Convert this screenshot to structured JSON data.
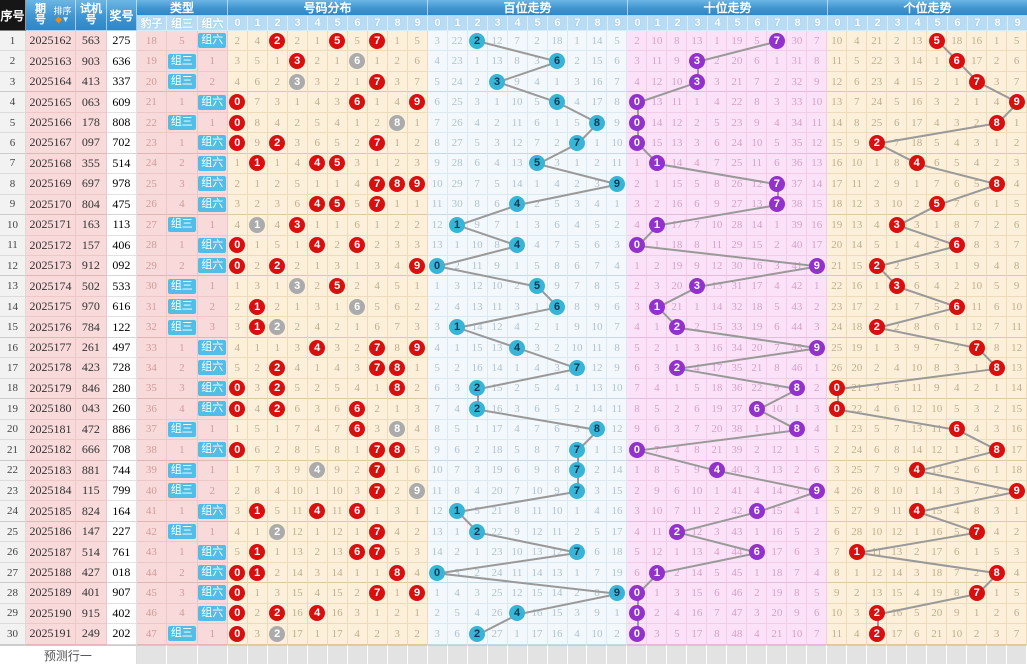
{
  "header": {
    "seq": "序号",
    "period": "期号",
    "sort": "排序",
    "sort_icons": [
      "◆",
      "▼"
    ],
    "test": "试机号",
    "prize": "奖号",
    "type": "类型",
    "sections": [
      "号码分布",
      "百位走势",
      "十位走势",
      "个位走势"
    ],
    "type_cols": [
      "豹子",
      "组三",
      "组六"
    ],
    "digits": [
      "0",
      "1",
      "2",
      "3",
      "4",
      "5",
      "6",
      "7",
      "8",
      "9"
    ]
  },
  "footer": {
    "label": "预测行一"
  },
  "colors": {
    "header_blue": "#3f95d1",
    "subheader_blue": "#b7dcf4",
    "seq_header_black": "#161616",
    "left_pink": "#f9dada",
    "cream": "#fcf0da",
    "hundreds_bg": "#f2f8fb",
    "tens_bg": "#fce2f8",
    "hit_red": "#d90f0f",
    "repeat_gray": "#ababab",
    "hundreds_cyan": "#38b4d6",
    "tens_purple": "#9231cb",
    "type_badge_cyan": "#52bee7",
    "trend_line": "#999999"
  },
  "legend": {
    "cell_codes": "numbers are miss counts; R = red hit circle (digit drawn), G = gray circle (digit drawn twice), H = hit circle in trend section at that digit column"
  },
  "row_fields": [
    "seq",
    "period",
    "test_number",
    "prize_number",
    "baozi_miss",
    "zu3",
    "zu6",
    "dist",
    "hundreds",
    "tens",
    "units"
  ],
  "rows": [
    [
      1,
      "2025162",
      "563",
      "275",
      18,
      5,
      "组六",
      [
        2,
        4,
        "R",
        2,
        1,
        "R",
        5,
        "R",
        1,
        5
      ],
      [
        3,
        22,
        "H",
        12,
        7,
        2,
        18,
        1,
        14,
        5
      ],
      [
        2,
        10,
        8,
        13,
        1,
        19,
        5,
        "H",
        30,
        7
      ],
      [
        10,
        4,
        21,
        2,
        13,
        "H",
        18,
        16,
        1,
        5
      ]
    ],
    [
      2,
      "2025163",
      "903",
      "636",
      19,
      "组三",
      1,
      [
        3,
        5,
        1,
        "R",
        2,
        1,
        "G",
        1,
        2,
        6
      ],
      [
        4,
        23,
        1,
        13,
        8,
        3,
        "H",
        2,
        15,
        6
      ],
      [
        3,
        11,
        9,
        "H",
        2,
        20,
        6,
        1,
        31,
        8
      ],
      [
        11,
        5,
        22,
        3,
        14,
        1,
        "H",
        17,
        2,
        6
      ]
    ],
    [
      3,
      "2025164",
      "413",
      "337",
      20,
      "组三",
      2,
      [
        4,
        6,
        2,
        "G",
        3,
        2,
        1,
        "R",
        3,
        7
      ],
      [
        5,
        24,
        2,
        "H",
        9,
        4,
        1,
        3,
        16,
        7
      ],
      [
        4,
        12,
        10,
        "H",
        3,
        21,
        7,
        2,
        32,
        9
      ],
      [
        12,
        6,
        23,
        4,
        15,
        2,
        1,
        "H",
        3,
        7
      ]
    ],
    [
      4,
      "2025165",
      "063",
      "609",
      21,
      1,
      "组六",
      [
        "R",
        7,
        3,
        1,
        4,
        3,
        "R",
        1,
        4,
        "R"
      ],
      [
        6,
        25,
        3,
        1,
        10,
        5,
        "H",
        4,
        17,
        8
      ],
      [
        "H",
        13,
        11,
        1,
        4,
        22,
        8,
        3,
        33,
        10
      ],
      [
        13,
        7,
        24,
        5,
        16,
        3,
        2,
        1,
        4,
        "H"
      ]
    ],
    [
      5,
      "2025166",
      "178",
      "808",
      22,
      "组三",
      1,
      [
        "R",
        8,
        4,
        2,
        5,
        4,
        1,
        2,
        "G",
        1
      ],
      [
        7,
        26,
        4,
        2,
        11,
        6,
        1,
        5,
        "H",
        9
      ],
      [
        "H",
        14,
        12,
        2,
        5,
        23,
        9,
        4,
        34,
        11
      ],
      [
        14,
        8,
        25,
        6,
        17,
        4,
        3,
        2,
        "H",
        1
      ]
    ],
    [
      6,
      "2025167",
      "097",
      "702",
      23,
      1,
      "组六",
      [
        "R",
        9,
        "R",
        3,
        6,
        5,
        2,
        "R",
        1,
        2
      ],
      [
        8,
        27,
        5,
        3,
        12,
        7,
        2,
        "H",
        1,
        10
      ],
      [
        "H",
        15,
        13,
        3,
        6,
        24,
        10,
        5,
        35,
        12
      ],
      [
        15,
        9,
        "H",
        7,
        18,
        5,
        4,
        3,
        1,
        2
      ]
    ],
    [
      7,
      "2025168",
      "355",
      "514",
      24,
      2,
      "组六",
      [
        1,
        "R",
        1,
        4,
        "R",
        "R",
        3,
        1,
        2,
        3
      ],
      [
        9,
        28,
        6,
        4,
        13,
        "H",
        3,
        1,
        2,
        11
      ],
      [
        1,
        "H",
        14,
        4,
        7,
        25,
        11,
        6,
        36,
        13
      ],
      [
        16,
        10,
        1,
        8,
        "H",
        6,
        5,
        4,
        2,
        3
      ]
    ],
    [
      8,
      "2025169",
      "697",
      "978",
      25,
      3,
      "组六",
      [
        2,
        1,
        2,
        5,
        1,
        1,
        4,
        "R",
        "R",
        "R"
      ],
      [
        10,
        29,
        7,
        5,
        14,
        1,
        4,
        2,
        3,
        "H"
      ],
      [
        2,
        1,
        15,
        5,
        8,
        26,
        12,
        "H",
        37,
        14
      ],
      [
        17,
        11,
        2,
        9,
        1,
        7,
        6,
        5,
        "H",
        4
      ]
    ],
    [
      9,
      "2025170",
      "804",
      "475",
      26,
      4,
      "组六",
      [
        3,
        2,
        3,
        6,
        "R",
        "R",
        5,
        "R",
        1,
        1
      ],
      [
        11,
        30,
        8,
        6,
        "H",
        2,
        5,
        3,
        4,
        1
      ],
      [
        3,
        2,
        16,
        6,
        9,
        27,
        13,
        "H",
        38,
        15
      ],
      [
        18,
        12,
        3,
        10,
        2,
        "H",
        7,
        6,
        1,
        5
      ]
    ],
    [
      10,
      "2025171",
      "163",
      "113",
      27,
      "组三",
      1,
      [
        4,
        "G",
        4,
        "R",
        1,
        1,
        6,
        1,
        2,
        2
      ],
      [
        12,
        "H",
        9,
        7,
        1,
        3,
        6,
        4,
        5,
        2
      ],
      [
        4,
        "H",
        17,
        7,
        10,
        28,
        14,
        1,
        39,
        16
      ],
      [
        19,
        13,
        4,
        "H",
        3,
        1,
        8,
        7,
        2,
        6
      ]
    ],
    [
      11,
      "2025172",
      "157",
      "406",
      28,
      1,
      "组六",
      [
        "R",
        1,
        5,
        1,
        "R",
        2,
        "R",
        2,
        3,
        3
      ],
      [
        13,
        1,
        10,
        8,
        "H",
        4,
        7,
        5,
        6,
        3
      ],
      [
        "H",
        1,
        18,
        8,
        11,
        29,
        15,
        2,
        40,
        17
      ],
      [
        20,
        14,
        5,
        1,
        4,
        2,
        "H",
        8,
        3,
        7
      ]
    ],
    [
      12,
      "2025173",
      "912",
      "092",
      29,
      2,
      "组六",
      [
        "R",
        2,
        "R",
        2,
        1,
        3,
        1,
        3,
        4,
        "R"
      ],
      [
        "H",
        2,
        11,
        9,
        1,
        5,
        8,
        6,
        7,
        4
      ],
      [
        1,
        2,
        19,
        9,
        12,
        30,
        16,
        3,
        41,
        "H"
      ],
      [
        21,
        15,
        "H",
        2,
        5,
        3,
        1,
        9,
        4,
        8
      ]
    ],
    [
      13,
      "2025174",
      "502",
      "533",
      30,
      "组三",
      1,
      [
        1,
        3,
        1,
        "G",
        2,
        "R",
        2,
        4,
        5,
        1
      ],
      [
        1,
        3,
        12,
        10,
        2,
        "H",
        9,
        7,
        8,
        5
      ],
      [
        2,
        3,
        20,
        "H",
        13,
        31,
        17,
        4,
        42,
        1
      ],
      [
        22,
        16,
        1,
        "H",
        6,
        4,
        2,
        10,
        5,
        9
      ]
    ],
    [
      14,
      "2025175",
      "970",
      "616",
      31,
      "组三",
      2,
      [
        2,
        "R",
        2,
        1,
        3,
        1,
        "G",
        5,
        6,
        2
      ],
      [
        2,
        4,
        13,
        11,
        3,
        1,
        "H",
        8,
        9,
        6
      ],
      [
        3,
        "H",
        21,
        1,
        14,
        32,
        18,
        5,
        43,
        2
      ],
      [
        23,
        17,
        2,
        1,
        7,
        5,
        "H",
        11,
        6,
        10
      ]
    ],
    [
      15,
      "2025176",
      "784",
      "122",
      32,
      "组三",
      3,
      [
        3,
        "R",
        "G",
        2,
        4,
        2,
        1,
        6,
        7,
        3
      ],
      [
        3,
        "H",
        14,
        12,
        4,
        2,
        1,
        9,
        10,
        7
      ],
      [
        4,
        1,
        "H",
        2,
        15,
        33,
        19,
        6,
        44,
        3
      ],
      [
        24,
        18,
        "H",
        2,
        8,
        6,
        1,
        12,
        7,
        11
      ]
    ],
    [
      16,
      "2025177",
      "261",
      "497",
      33,
      1,
      "组六",
      [
        4,
        1,
        1,
        3,
        "R",
        3,
        2,
        "R",
        8,
        "R"
      ],
      [
        4,
        1,
        15,
        13,
        "H",
        3,
        2,
        10,
        11,
        8
      ],
      [
        5,
        2,
        1,
        3,
        16,
        34,
        20,
        7,
        45,
        "H"
      ],
      [
        25,
        19,
        1,
        3,
        9,
        7,
        2,
        "H",
        8,
        12
      ]
    ],
    [
      17,
      "2025178",
      "423",
      "728",
      34,
      2,
      "组六",
      [
        5,
        2,
        "R",
        4,
        1,
        4,
        3,
        "R",
        "R",
        1
      ],
      [
        5,
        2,
        16,
        14,
        1,
        4,
        3,
        "H",
        12,
        9
      ],
      [
        6,
        3,
        "H",
        4,
        17,
        35,
        21,
        8,
        46,
        1
      ],
      [
        26,
        20,
        2,
        4,
        10,
        8,
        3,
        1,
        "H",
        13
      ]
    ],
    [
      18,
      "2025179",
      "846",
      "280",
      35,
      3,
      "组六",
      [
        "R",
        3,
        "R",
        5,
        2,
        5,
        4,
        1,
        "R",
        2
      ],
      [
        6,
        3,
        "H",
        15,
        2,
        5,
        4,
        1,
        13,
        10
      ],
      [
        7,
        4,
        1,
        5,
        18,
        36,
        22,
        9,
        "H",
        2
      ],
      [
        "H",
        21,
        3,
        5,
        11,
        9,
        4,
        2,
        1,
        14
      ]
    ],
    [
      19,
      "2025180",
      "043",
      "260",
      36,
      4,
      "组六",
      [
        "R",
        4,
        "R",
        6,
        3,
        6,
        "R",
        2,
        1,
        3
      ],
      [
        7,
        4,
        "H",
        16,
        3,
        6,
        5,
        2,
        14,
        11
      ],
      [
        8,
        5,
        2,
        6,
        19,
        37,
        "H",
        10,
        1,
        3
      ],
      [
        "H",
        22,
        4,
        6,
        12,
        10,
        5,
        3,
        2,
        15
      ]
    ],
    [
      20,
      "2025181",
      "472",
      "886",
      37,
      "组三",
      1,
      [
        1,
        5,
        1,
        7,
        4,
        7,
        "R",
        3,
        "G",
        4
      ],
      [
        8,
        5,
        1,
        17,
        4,
        7,
        6,
        3,
        "H",
        12
      ],
      [
        9,
        6,
        3,
        7,
        20,
        38,
        1,
        11,
        "H",
        4
      ],
      [
        1,
        23,
        5,
        7,
        13,
        11,
        "H",
        4,
        3,
        16
      ]
    ],
    [
      21,
      "2025182",
      "666",
      "708",
      38,
      1,
      "组六",
      [
        "R",
        6,
        2,
        8,
        5,
        8,
        1,
        "R",
        "R",
        5
      ],
      [
        9,
        6,
        2,
        18,
        5,
        8,
        7,
        "H",
        1,
        13
      ],
      [
        "H",
        7,
        4,
        8,
        21,
        39,
        2,
        12,
        1,
        5
      ],
      [
        2,
        24,
        6,
        8,
        14,
        12,
        1,
        5,
        "H",
        17
      ]
    ],
    [
      22,
      "2025183",
      "881",
      "744",
      39,
      "组三",
      1,
      [
        1,
        7,
        3,
        9,
        "G",
        9,
        2,
        "R",
        1,
        6
      ],
      [
        10,
        7,
        3,
        19,
        6,
        9,
        8,
        "H",
        2,
        14
      ],
      [
        1,
        8,
        5,
        9,
        "H",
        40,
        3,
        13,
        2,
        6
      ],
      [
        3,
        25,
        7,
        9,
        "H",
        13,
        2,
        6,
        1,
        18
      ]
    ],
    [
      23,
      "2025184",
      "115",
      "799",
      40,
      "组三",
      2,
      [
        2,
        8,
        4,
        10,
        1,
        10,
        3,
        "R",
        2,
        "G"
      ],
      [
        11,
        8,
        4,
        20,
        7,
        10,
        9,
        "H",
        3,
        15
      ],
      [
        2,
        9,
        6,
        10,
        1,
        41,
        4,
        14,
        3,
        "H"
      ],
      [
        4,
        26,
        8,
        10,
        1,
        14,
        3,
        7,
        2,
        "H"
      ]
    ],
    [
      24,
      "2025185",
      "824",
      "164",
      41,
      1,
      "组六",
      [
        3,
        "R",
        5,
        11,
        "R",
        11,
        "R",
        1,
        3,
        1
      ],
      [
        12,
        "H",
        5,
        21,
        8,
        11,
        10,
        1,
        4,
        16
      ],
      [
        3,
        10,
        7,
        11,
        2,
        42,
        "H",
        15,
        4,
        1
      ],
      [
        5,
        27,
        9,
        11,
        "H",
        15,
        4,
        8,
        3,
        1
      ]
    ],
    [
      25,
      "2025186",
      "147",
      "227",
      42,
      "组三",
      1,
      [
        4,
        1,
        "G",
        12,
        1,
        12,
        1,
        "R",
        4,
        2
      ],
      [
        13,
        1,
        "H",
        22,
        9,
        12,
        11,
        2,
        5,
        17
      ],
      [
        4,
        11,
        "H",
        12,
        3,
        43,
        1,
        16,
        5,
        2
      ],
      [
        6,
        28,
        10,
        12,
        1,
        16,
        5,
        "H",
        4,
        2
      ]
    ],
    [
      26,
      "2025187",
      "514",
      "761",
      43,
      1,
      "组六",
      [
        5,
        "R",
        1,
        13,
        2,
        13,
        "R",
        "R",
        5,
        3
      ],
      [
        14,
        2,
        1,
        23,
        10,
        13,
        12,
        "H",
        6,
        18
      ],
      [
        5,
        12,
        1,
        13,
        4,
        44,
        "H",
        17,
        6,
        3
      ],
      [
        7,
        "H",
        11,
        13,
        2,
        17,
        6,
        1,
        5,
        3
      ]
    ],
    [
      27,
      "2025188",
      "427",
      "018",
      44,
      2,
      "组六",
      [
        "R",
        "R",
        2,
        14,
        3,
        14,
        1,
        1,
        "R",
        4
      ],
      [
        "H",
        3,
        2,
        24,
        11,
        14,
        13,
        1,
        7,
        19
      ],
      [
        6,
        "H",
        2,
        14,
        5,
        45,
        1,
        18,
        7,
        4
      ],
      [
        8,
        1,
        12,
        14,
        3,
        18,
        7,
        2,
        "H",
        4
      ]
    ],
    [
      28,
      "2025189",
      "401",
      "907",
      45,
      3,
      "组六",
      [
        "R",
        1,
        3,
        15,
        4,
        15,
        2,
        "R",
        1,
        "R"
      ],
      [
        1,
        4,
        3,
        25,
        12,
        15,
        14,
        2,
        8,
        "H"
      ],
      [
        "H",
        1,
        3,
        15,
        6,
        46,
        2,
        19,
        8,
        5
      ],
      [
        9,
        2,
        13,
        15,
        4,
        19,
        8,
        "H",
        1,
        5
      ]
    ],
    [
      29,
      "2025190",
      "915",
      "402",
      46,
      4,
      "组六",
      [
        "R",
        2,
        "R",
        16,
        "R",
        16,
        3,
        1,
        2,
        1
      ],
      [
        2,
        5,
        4,
        26,
        "H",
        16,
        15,
        3,
        9,
        1
      ],
      [
        "H",
        2,
        4,
        16,
        7,
        47,
        3,
        20,
        9,
        6
      ],
      [
        10,
        3,
        "H",
        16,
        5,
        20,
        9,
        1,
        2,
        6
      ]
    ],
    [
      30,
      "2025191",
      "249",
      "202",
      47,
      "组三",
      1,
      [
        "R",
        3,
        "G",
        17,
        1,
        17,
        4,
        2,
        3,
        2
      ],
      [
        3,
        6,
        "H",
        27,
        1,
        17,
        16,
        4,
        10,
        2
      ],
      [
        "H",
        3,
        5,
        17,
        8,
        48,
        4,
        21,
        10,
        7
      ],
      [
        11,
        4,
        "H",
        17,
        6,
        21,
        10,
        2,
        3,
        7
      ]
    ]
  ]
}
